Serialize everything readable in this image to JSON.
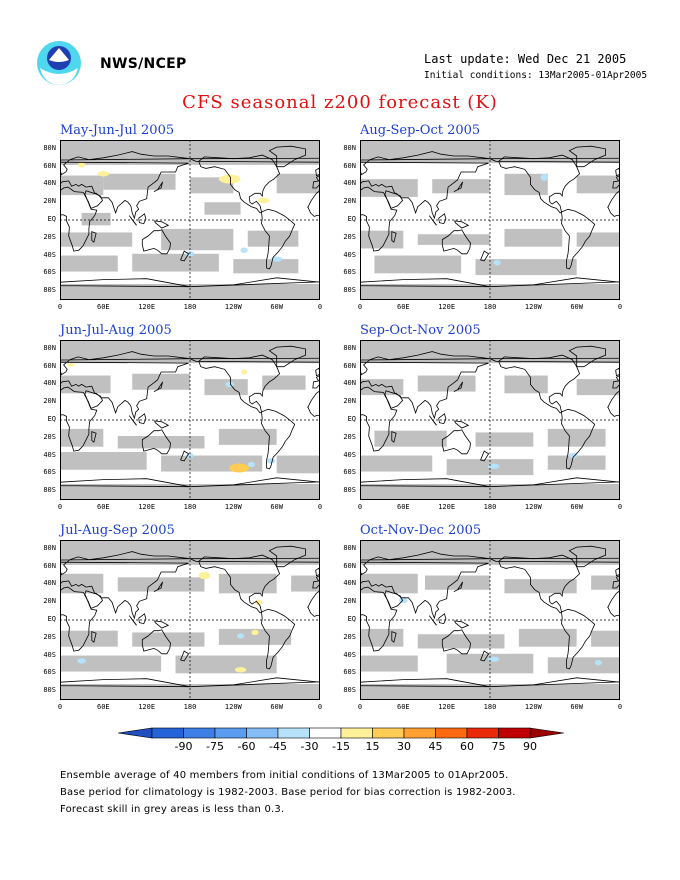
{
  "header": {
    "org": "NWS/NCEP",
    "last_update": "Last update: Wed Dec 21 2005",
    "initial_conditions": "Initial conditions: 13Mar2005-01Apr2005",
    "title": "CFS seasonal z200 forecast (K)"
  },
  "axes": {
    "lat_labels": [
      "80N",
      "60N",
      "40N",
      "20N",
      "EQ",
      "20S",
      "40S",
      "60S",
      "80S"
    ],
    "lon_labels": [
      "0",
      "60E",
      "120E",
      "180",
      "120W",
      "60W",
      "0"
    ]
  },
  "panels": [
    {
      "title": "May-Jun-Jul 2005"
    },
    {
      "title": "Aug-Sep-Oct 2005"
    },
    {
      "title": "Jun-Jul-Aug 2005"
    },
    {
      "title": "Sep-Oct-Nov 2005"
    },
    {
      "title": "Jul-Aug-Sep 2005"
    },
    {
      "title": "Oct-Nov-Dec 2005"
    }
  ],
  "colorbar": {
    "labels": [
      "-90",
      "-75",
      "-60",
      "-45",
      "-30",
      "-15",
      "15",
      "30",
      "45",
      "60",
      "75",
      "90"
    ],
    "colors": [
      "#2563d8",
      "#3d7fe6",
      "#5a9cf0",
      "#86bcf6",
      "#b6e2fa",
      "#ffffff",
      "#fff09a",
      "#ffcc55",
      "#ffa030",
      "#ff6a10",
      "#e82a0a",
      "#c00000"
    ],
    "low_color": "#1f4fc0",
    "high_color": "#9a0000"
  },
  "colors": {
    "skill_grey": "#c0c0c0",
    "title_red": "#e01010",
    "panel_title_blue": "#1a3fd0"
  },
  "notes": [
    "Ensemble average of 40 members from initial conditions of 13Mar2005 to 01Apr2005.",
    "Base period for climatology is 1982-2003. Base period for bias correction is 1982-2003.",
    "Forecast skill in grey areas is less than 0.3."
  ]
}
